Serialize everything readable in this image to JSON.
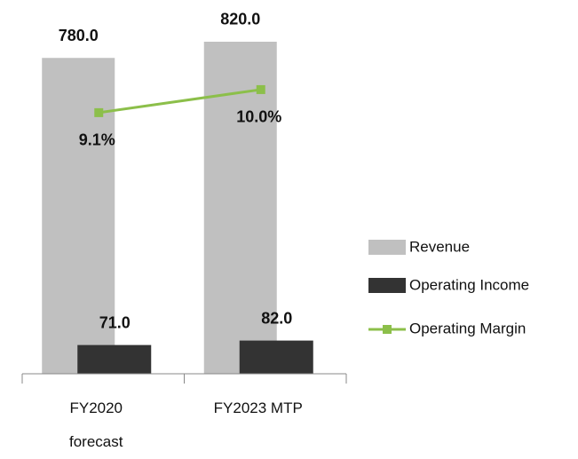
{
  "chart_data": {
    "type": "bar",
    "categories": [
      "FY2020 forecast",
      "FY2023 MTP"
    ],
    "series": [
      {
        "name": "Revenue",
        "color": "#c0c0c0",
        "values": [
          780,
          820
        ],
        "value_labels": [
          "780.0",
          "820.0"
        ]
      },
      {
        "name": "Operating Income",
        "color": "#333333",
        "values": [
          71,
          82
        ],
        "value_labels": [
          "71.0",
          "82.0"
        ]
      },
      {
        "name": "Operating Margin",
        "type": "line",
        "axis": "y2",
        "color": "#8cbf4a",
        "values": [
          9.1,
          10.0
        ],
        "value_labels": [
          "9.1%",
          "10.0%"
        ]
      }
    ],
    "ylim": [
      0,
      923
    ],
    "y2lim": [
      -1.1,
      13.5
    ],
    "legend": "right"
  }
}
